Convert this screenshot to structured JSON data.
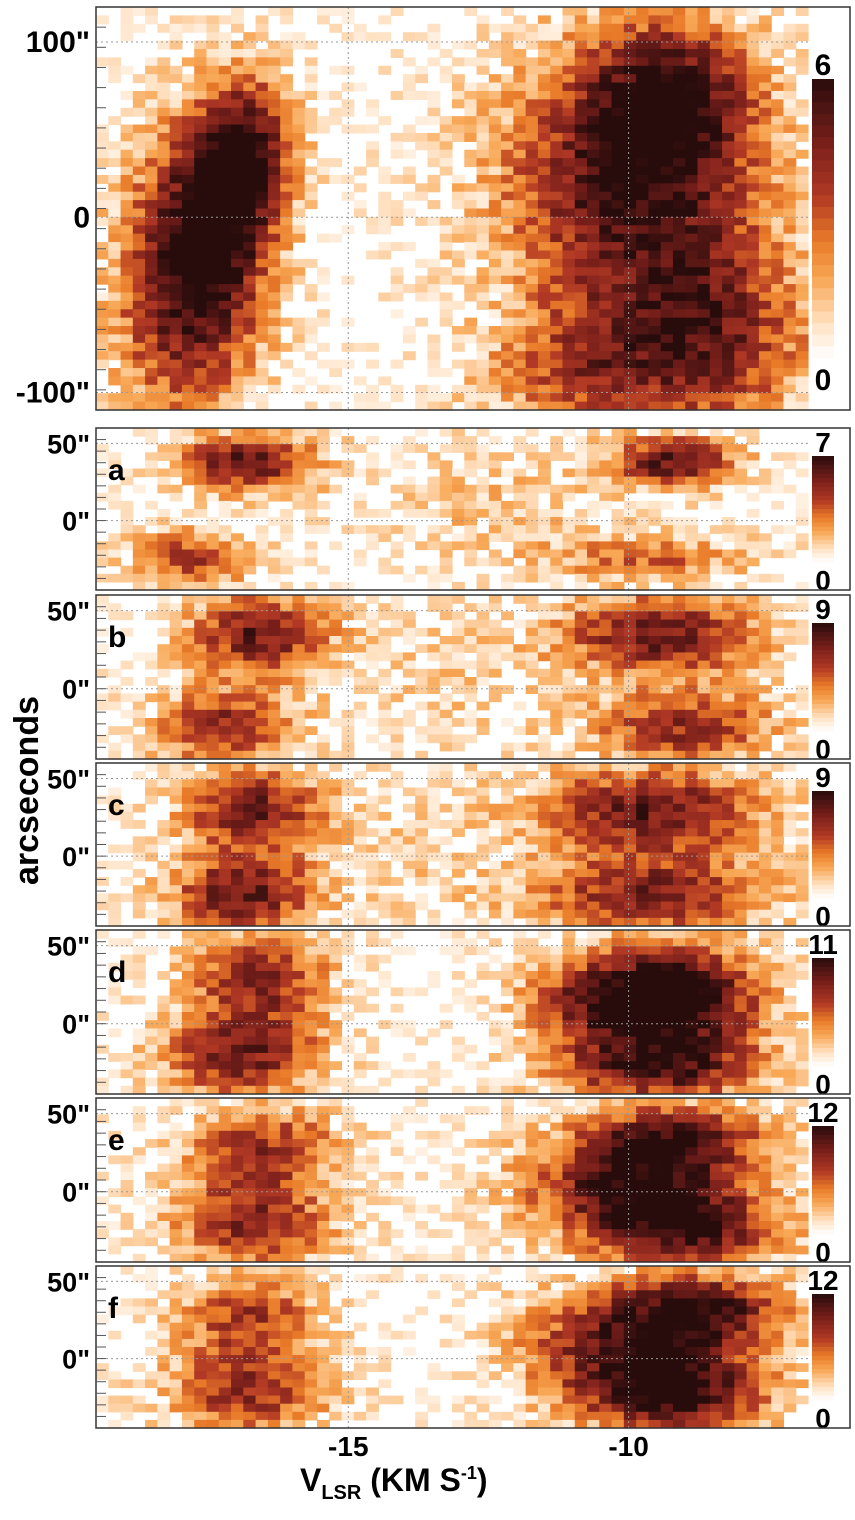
{
  "chart_data": {
    "type": "heatmap",
    "x_axis": {
      "label_main": "V",
      "label_sub": "LSR",
      "label_units": " (KM S",
      "label_sup": "-1",
      "label_close": ")",
      "range": [
        -19.5,
        -6.8
      ],
      "ticks": [
        -15,
        -10
      ],
      "tick_labels": [
        "-15",
        "-10"
      ]
    },
    "y_label": "arcseconds",
    "color_scale": {
      "low": "#ffffff",
      "mid": "#f08a2e",
      "high": "#2a0a0a"
    },
    "panels": [
      {
        "name": "",
        "y_range": [
          -110,
          120
        ],
        "y_ticks": [
          100,
          0,
          -100
        ],
        "y_tick_labels": [
          "100\"",
          "0",
          "-100\""
        ],
        "colorbar_min_label": "0",
        "colorbar_max_label": "6",
        "max_value": 6,
        "blobs": [
          {
            "v": -17.9,
            "pos": -40,
            "sv": 0.9,
            "sp": 55,
            "amp": 5.2
          },
          {
            "v": -16.8,
            "pos": 40,
            "sv": 0.6,
            "sp": 30,
            "amp": 4.8
          },
          {
            "v": -17.3,
            "pos": 0,
            "sv": 0.7,
            "sp": 40,
            "amp": 3.5
          },
          {
            "v": -10.0,
            "pos": 20,
            "sv": 1.6,
            "sp": 55,
            "amp": 5.6
          },
          {
            "v": -9.2,
            "pos": 70,
            "sv": 1.0,
            "sp": 30,
            "amp": 4.0
          },
          {
            "v": -8.6,
            "pos": -70,
            "sv": 1.3,
            "sp": 40,
            "amp": 4.2
          },
          {
            "v": -11.0,
            "pos": -90,
            "sv": 1.2,
            "sp": 25,
            "amp": 2.8
          }
        ]
      },
      {
        "name": "a",
        "y_range": [
          -45,
          60
        ],
        "y_ticks": [
          50,
          0
        ],
        "y_tick_labels": [
          "50\"",
          "0\""
        ],
        "colorbar_min_label": "0",
        "colorbar_max_label": "7",
        "max_value": 7,
        "blobs": [
          {
            "v": -16.8,
            "pos": 38,
            "sv": 0.9,
            "sp": 14,
            "amp": 6.0
          },
          {
            "v": -17.8,
            "pos": -25,
            "sv": 0.8,
            "sp": 14,
            "amp": 4.2
          },
          {
            "v": -9.2,
            "pos": 38,
            "sv": 0.8,
            "sp": 12,
            "amp": 6.2
          },
          {
            "v": -9.6,
            "pos": -25,
            "sv": 1.3,
            "sp": 12,
            "amp": 3.2
          },
          {
            "v": -12.5,
            "pos": 10,
            "sv": 1.5,
            "sp": 30,
            "amp": 1.4
          }
        ]
      },
      {
        "name": "b",
        "y_range": [
          -45,
          60
        ],
        "y_ticks": [
          50,
          0
        ],
        "y_tick_labels": [
          "50\"",
          "0\""
        ],
        "colorbar_min_label": "0",
        "colorbar_max_label": "9",
        "max_value": 9,
        "blobs": [
          {
            "v": -16.6,
            "pos": 35,
            "sv": 0.9,
            "sp": 18,
            "amp": 7.5
          },
          {
            "v": -17.2,
            "pos": -25,
            "sv": 0.9,
            "sp": 18,
            "amp": 6.5
          },
          {
            "v": -9.4,
            "pos": 35,
            "sv": 1.3,
            "sp": 18,
            "amp": 7.6
          },
          {
            "v": -9.0,
            "pos": -25,
            "sv": 1.2,
            "sp": 18,
            "amp": 6.2
          },
          {
            "v": -13.2,
            "pos": 5,
            "sv": 1.4,
            "sp": 40,
            "amp": 1.3
          }
        ]
      },
      {
        "name": "c",
        "y_range": [
          -45,
          60
        ],
        "y_ticks": [
          50,
          0
        ],
        "y_tick_labels": [
          "50\"",
          "0\""
        ],
        "colorbar_min_label": "0",
        "colorbar_max_label": "9",
        "max_value": 9,
        "blobs": [
          {
            "v": -16.7,
            "pos": 30,
            "sv": 0.9,
            "sp": 20,
            "amp": 7.2
          },
          {
            "v": -16.9,
            "pos": -25,
            "sv": 0.9,
            "sp": 18,
            "amp": 7.8
          },
          {
            "v": -9.6,
            "pos": 30,
            "sv": 1.5,
            "sp": 20,
            "amp": 7.6
          },
          {
            "v": -9.6,
            "pos": -25,
            "sv": 1.5,
            "sp": 18,
            "amp": 7.0
          },
          {
            "v": -13.8,
            "pos": 0,
            "sv": 1.2,
            "sp": 40,
            "amp": 1.2
          }
        ]
      },
      {
        "name": "d",
        "y_range": [
          -45,
          60
        ],
        "y_ticks": [
          50,
          0
        ],
        "y_tick_labels": [
          "50\"",
          "0\""
        ],
        "colorbar_min_label": "0",
        "colorbar_max_label": "11",
        "max_value": 11,
        "blobs": [
          {
            "v": -16.6,
            "pos": 30,
            "sv": 0.9,
            "sp": 20,
            "amp": 8.0
          },
          {
            "v": -16.9,
            "pos": -20,
            "sv": 1.0,
            "sp": 20,
            "amp": 8.8
          },
          {
            "v": -10.2,
            "pos": 15,
            "sv": 1.1,
            "sp": 22,
            "amp": 10.5
          },
          {
            "v": -8.8,
            "pos": 15,
            "sv": 1.0,
            "sp": 28,
            "amp": 8.0
          },
          {
            "v": -9.6,
            "pos": -30,
            "sv": 1.3,
            "sp": 14,
            "amp": 8.5
          }
        ]
      },
      {
        "name": "e",
        "y_range": [
          -45,
          60
        ],
        "y_ticks": [
          50,
          0
        ],
        "y_tick_labels": [
          "50\"",
          "0\""
        ],
        "colorbar_min_label": "0",
        "colorbar_max_label": "12",
        "max_value": 12,
        "blobs": [
          {
            "v": -16.5,
            "pos": 30,
            "sv": 1.0,
            "sp": 18,
            "amp": 7.5
          },
          {
            "v": -16.7,
            "pos": -20,
            "sv": 1.0,
            "sp": 22,
            "amp": 8.8
          },
          {
            "v": -10.0,
            "pos": 5,
            "sv": 1.3,
            "sp": 25,
            "amp": 11.0
          },
          {
            "v": -8.8,
            "pos": -25,
            "sv": 1.2,
            "sp": 18,
            "amp": 9.5
          },
          {
            "v": -9.0,
            "pos": 35,
            "sv": 1.1,
            "sp": 15,
            "amp": 8.5
          }
        ]
      },
      {
        "name": "f",
        "y_range": [
          -45,
          60
        ],
        "y_ticks": [
          50,
          0
        ],
        "y_tick_labels": [
          "50\"",
          "0\""
        ],
        "colorbar_min_label": "0",
        "colorbar_max_label": "12",
        "max_value": 12,
        "blobs": [
          {
            "v": -16.8,
            "pos": 30,
            "sv": 0.9,
            "sp": 18,
            "amp": 7.0
          },
          {
            "v": -16.8,
            "pos": -20,
            "sv": 1.0,
            "sp": 22,
            "amp": 8.5
          },
          {
            "v": -9.8,
            "pos": 10,
            "sv": 1.4,
            "sp": 25,
            "amp": 11.2
          },
          {
            "v": -9.2,
            "pos": -25,
            "sv": 1.2,
            "sp": 18,
            "amp": 9.8
          },
          {
            "v": -8.6,
            "pos": 35,
            "sv": 1.0,
            "sp": 15,
            "amp": 8.0
          }
        ]
      }
    ]
  }
}
